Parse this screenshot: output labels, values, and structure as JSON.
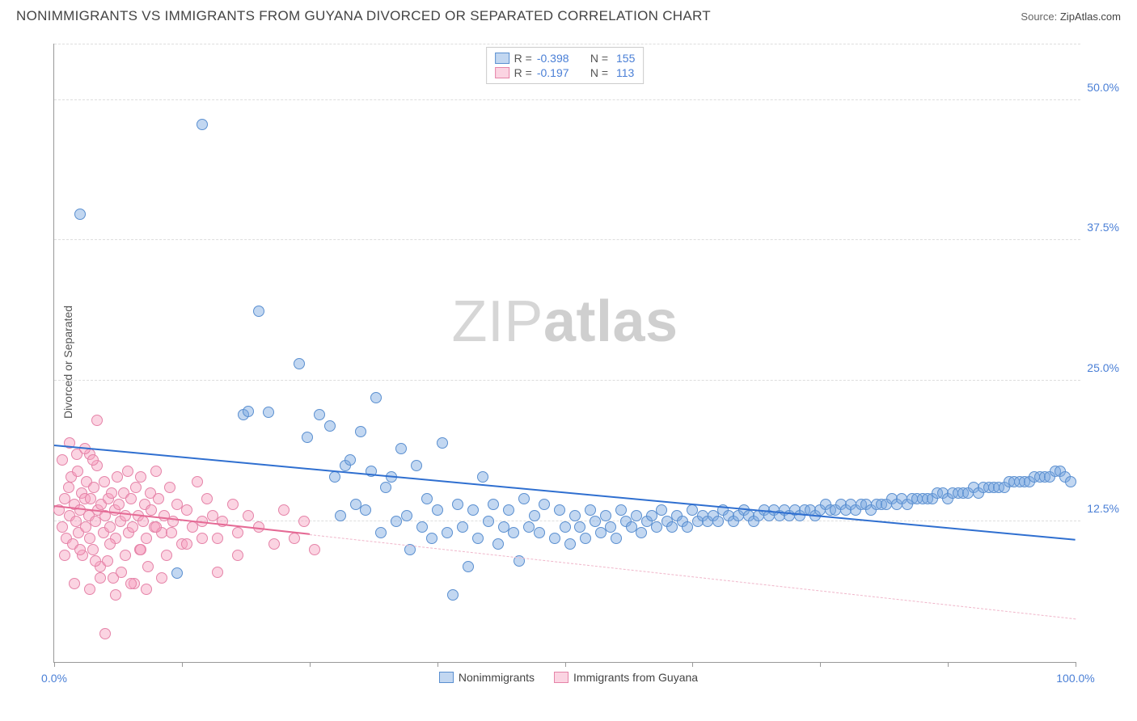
{
  "title": "NONIMMIGRANTS VS IMMIGRANTS FROM GUYANA DIVORCED OR SEPARATED CORRELATION CHART",
  "source": {
    "label": "Source:",
    "name": "ZipAtlas.com"
  },
  "ylabel": "Divorced or Separated",
  "watermark": {
    "part1": "ZIP",
    "part2": "atlas"
  },
  "chart": {
    "type": "scatter",
    "background_color": "#ffffff",
    "grid_color": "#dddddd",
    "axis_color": "#999999",
    "xlim": [
      0,
      100
    ],
    "ylim": [
      0,
      55
    ],
    "y_ticks": [
      12.5,
      25.0,
      37.5,
      50.0
    ],
    "y_tick_labels": [
      "12.5%",
      "25.0%",
      "37.5%",
      "50.0%"
    ],
    "y_tick_color": "#4a7fd6",
    "x_ticks": [
      0,
      12.5,
      25,
      37.5,
      50,
      62.5,
      75,
      87.5,
      100
    ],
    "x_tick_labels": {
      "0": "0.0%",
      "100": "100.0%"
    },
    "x_tick_color": "#4a7fd6",
    "marker_radius": 7,
    "marker_stroke_width": 1,
    "series": [
      {
        "name": "Nonimmigrants",
        "fill_color": "rgba(120,166,224,0.45)",
        "stroke_color": "#5a8fd0",
        "R": "-0.398",
        "N": "155",
        "trend": {
          "color": "#2f6fd0",
          "width": 2.5,
          "style": "solid",
          "x1": 0,
          "y1": 19.2,
          "x2": 100,
          "y2": 10.8
        },
        "points": [
          [
            2.5,
            39.8
          ],
          [
            14.5,
            47.8
          ],
          [
            12.0,
            7.9
          ],
          [
            18.5,
            22.0
          ],
          [
            19.0,
            22.3
          ],
          [
            20.0,
            31.2
          ],
          [
            21.0,
            22.2
          ],
          [
            24.0,
            26.5
          ],
          [
            24.8,
            20.0
          ],
          [
            26.0,
            22.0
          ],
          [
            27.0,
            21.0
          ],
          [
            27.5,
            16.5
          ],
          [
            28.5,
            17.5
          ],
          [
            28.0,
            13.0
          ],
          [
            29.0,
            18.0
          ],
          [
            29.5,
            14.0
          ],
          [
            30.0,
            20.5
          ],
          [
            30.5,
            13.5
          ],
          [
            31.0,
            17.0
          ],
          [
            31.5,
            23.5
          ],
          [
            32.0,
            11.5
          ],
          [
            32.5,
            15.5
          ],
          [
            33.0,
            16.5
          ],
          [
            33.5,
            12.5
          ],
          [
            34.0,
            19.0
          ],
          [
            34.5,
            13.0
          ],
          [
            35.5,
            17.5
          ],
          [
            34.8,
            10.0
          ],
          [
            36.0,
            12.0
          ],
          [
            36.5,
            14.5
          ],
          [
            37.0,
            11.0
          ],
          [
            37.5,
            13.5
          ],
          [
            38.0,
            19.5
          ],
          [
            38.5,
            11.5
          ],
          [
            39.0,
            6.0
          ],
          [
            39.5,
            14.0
          ],
          [
            40.0,
            12.0
          ],
          [
            40.5,
            8.5
          ],
          [
            41.0,
            13.5
          ],
          [
            41.5,
            11.0
          ],
          [
            42.0,
            16.5
          ],
          [
            42.5,
            12.5
          ],
          [
            43.0,
            14.0
          ],
          [
            43.5,
            10.5
          ],
          [
            44.0,
            12.0
          ],
          [
            44.5,
            13.5
          ],
          [
            45.0,
            11.5
          ],
          [
            45.5,
            9.0
          ],
          [
            46.0,
            14.5
          ],
          [
            46.5,
            12.0
          ],
          [
            47.0,
            13.0
          ],
          [
            47.5,
            11.5
          ],
          [
            48.0,
            14.0
          ],
          [
            49.0,
            11.0
          ],
          [
            49.5,
            13.5
          ],
          [
            50.0,
            12.0
          ],
          [
            50.5,
            10.5
          ],
          [
            51.0,
            13.0
          ],
          [
            51.5,
            12.0
          ],
          [
            52.0,
            11.0
          ],
          [
            52.5,
            13.5
          ],
          [
            53.0,
            12.5
          ],
          [
            53.5,
            11.5
          ],
          [
            54.0,
            13.0
          ],
          [
            54.5,
            12.0
          ],
          [
            55.0,
            11.0
          ],
          [
            55.5,
            13.5
          ],
          [
            56.0,
            12.5
          ],
          [
            56.5,
            12.0
          ],
          [
            57.0,
            13.0
          ],
          [
            57.5,
            11.5
          ],
          [
            58.0,
            12.5
          ],
          [
            58.5,
            13.0
          ],
          [
            59.0,
            12.0
          ],
          [
            59.5,
            13.5
          ],
          [
            60.0,
            12.5
          ],
          [
            60.5,
            12.0
          ],
          [
            61.0,
            13.0
          ],
          [
            61.5,
            12.5
          ],
          [
            62.0,
            12.0
          ],
          [
            62.5,
            13.5
          ],
          [
            63.0,
            12.5
          ],
          [
            63.5,
            13.0
          ],
          [
            64.0,
            12.5
          ],
          [
            64.5,
            13.0
          ],
          [
            65.0,
            12.5
          ],
          [
            65.5,
            13.5
          ],
          [
            66.0,
            13.0
          ],
          [
            66.5,
            12.5
          ],
          [
            67.0,
            13.0
          ],
          [
            67.5,
            13.5
          ],
          [
            68.0,
            13.0
          ],
          [
            68.5,
            12.5
          ],
          [
            69.0,
            13.0
          ],
          [
            69.5,
            13.5
          ],
          [
            70.0,
            13.0
          ],
          [
            70.5,
            13.5
          ],
          [
            71.0,
            13.0
          ],
          [
            71.5,
            13.5
          ],
          [
            72.0,
            13.0
          ],
          [
            72.5,
            13.5
          ],
          [
            73.0,
            13.0
          ],
          [
            73.5,
            13.5
          ],
          [
            74.0,
            13.5
          ],
          [
            74.5,
            13.0
          ],
          [
            75.0,
            13.5
          ],
          [
            75.5,
            14.0
          ],
          [
            76.0,
            13.5
          ],
          [
            76.5,
            13.5
          ],
          [
            77.0,
            14.0
          ],
          [
            77.5,
            13.5
          ],
          [
            78.0,
            14.0
          ],
          [
            78.5,
            13.5
          ],
          [
            79.0,
            14.0
          ],
          [
            79.5,
            14.0
          ],
          [
            80.0,
            13.5
          ],
          [
            80.5,
            14.0
          ],
          [
            81.0,
            14.0
          ],
          [
            81.5,
            14.0
          ],
          [
            82.0,
            14.5
          ],
          [
            82.5,
            14.0
          ],
          [
            83.0,
            14.5
          ],
          [
            83.5,
            14.0
          ],
          [
            84.0,
            14.5
          ],
          [
            84.5,
            14.5
          ],
          [
            85.0,
            14.5
          ],
          [
            85.5,
            14.5
          ],
          [
            86.0,
            14.5
          ],
          [
            86.5,
            15.0
          ],
          [
            87.0,
            15.0
          ],
          [
            87.5,
            14.5
          ],
          [
            88.0,
            15.0
          ],
          [
            88.5,
            15.0
          ],
          [
            89.0,
            15.0
          ],
          [
            89.5,
            15.0
          ],
          [
            90.0,
            15.5
          ],
          [
            90.5,
            15.0
          ],
          [
            91.0,
            15.5
          ],
          [
            91.5,
            15.5
          ],
          [
            92.0,
            15.5
          ],
          [
            92.5,
            15.5
          ],
          [
            93.0,
            15.5
          ],
          [
            93.5,
            16.0
          ],
          [
            94.0,
            16.0
          ],
          [
            94.5,
            16.0
          ],
          [
            95.0,
            16.0
          ],
          [
            95.5,
            16.0
          ],
          [
            96.0,
            16.5
          ],
          [
            96.5,
            16.5
          ],
          [
            97.0,
            16.5
          ],
          [
            97.5,
            16.5
          ],
          [
            98.0,
            17.0
          ],
          [
            98.5,
            17.0
          ],
          [
            99.0,
            16.5
          ],
          [
            99.5,
            16.0
          ]
        ]
      },
      {
        "name": "Immigrants from Guyana",
        "fill_color": "rgba(246,160,190,0.45)",
        "stroke_color": "#e583a8",
        "R": "-0.197",
        "N": "113",
        "trend": {
          "color": "#e56a95",
          "width": 2,
          "style": "solid",
          "x1": 0,
          "y1": 13.8,
          "x2": 25,
          "y2": 11.3,
          "extend_to_x": 100,
          "extend_to_y": 3.8,
          "dash_color": "#f0b6ca"
        },
        "points": [
          [
            0.5,
            13.5
          ],
          [
            0.8,
            12.0
          ],
          [
            1.0,
            14.5
          ],
          [
            1.2,
            11.0
          ],
          [
            1.4,
            15.5
          ],
          [
            1.5,
            13.0
          ],
          [
            1.7,
            16.5
          ],
          [
            1.8,
            10.5
          ],
          [
            2.0,
            14.0
          ],
          [
            2.1,
            12.5
          ],
          [
            2.3,
            17.0
          ],
          [
            2.4,
            11.5
          ],
          [
            2.5,
            13.5
          ],
          [
            2.7,
            15.0
          ],
          [
            2.8,
            9.5
          ],
          [
            3.0,
            14.5
          ],
          [
            3.1,
            12.0
          ],
          [
            3.2,
            16.0
          ],
          [
            3.4,
            13.0
          ],
          [
            3.5,
            11.0
          ],
          [
            3.6,
            14.5
          ],
          [
            3.8,
            10.0
          ],
          [
            3.9,
            15.5
          ],
          [
            4.0,
            12.5
          ],
          [
            4.2,
            17.5
          ],
          [
            4.3,
            13.5
          ],
          [
            4.5,
            8.5
          ],
          [
            4.6,
            14.0
          ],
          [
            4.8,
            11.5
          ],
          [
            4.9,
            16.0
          ],
          [
            5.0,
            13.0
          ],
          [
            5.2,
            9.0
          ],
          [
            5.3,
            14.5
          ],
          [
            5.5,
            12.0
          ],
          [
            5.6,
            15.0
          ],
          [
            5.8,
            7.5
          ],
          [
            5.9,
            13.5
          ],
          [
            6.0,
            11.0
          ],
          [
            6.2,
            16.5
          ],
          [
            6.3,
            14.0
          ],
          [
            6.5,
            12.5
          ],
          [
            6.6,
            8.0
          ],
          [
            6.8,
            15.0
          ],
          [
            7.0,
            13.0
          ],
          [
            7.2,
            17.0
          ],
          [
            7.3,
            11.5
          ],
          [
            7.5,
            14.5
          ],
          [
            7.7,
            12.0
          ],
          [
            7.8,
            7.0
          ],
          [
            8.0,
            15.5
          ],
          [
            8.2,
            13.0
          ],
          [
            8.4,
            10.0
          ],
          [
            8.5,
            16.5
          ],
          [
            8.7,
            12.5
          ],
          [
            8.9,
            14.0
          ],
          [
            9.0,
            11.0
          ],
          [
            9.2,
            8.5
          ],
          [
            9.4,
            15.0
          ],
          [
            9.5,
            13.5
          ],
          [
            9.8,
            12.0
          ],
          [
            10.0,
            17.0
          ],
          [
            10.2,
            14.5
          ],
          [
            10.5,
            11.5
          ],
          [
            10.8,
            13.0
          ],
          [
            11.0,
            9.5
          ],
          [
            11.3,
            15.5
          ],
          [
            11.6,
            12.5
          ],
          [
            12.0,
            14.0
          ],
          [
            4.2,
            21.5
          ],
          [
            3.5,
            18.5
          ],
          [
            12.5,
            10.5
          ],
          [
            13.0,
            13.5
          ],
          [
            13.5,
            12.0
          ],
          [
            14.0,
            16.0
          ],
          [
            14.5,
            11.0
          ],
          [
            15.0,
            14.5
          ],
          [
            15.5,
            13.0
          ],
          [
            16.0,
            8.0
          ],
          [
            16.5,
            12.5
          ],
          [
            17.5,
            14.0
          ],
          [
            18.0,
            11.5
          ],
          [
            19.0,
            13.0
          ],
          [
            20.0,
            12.0
          ],
          [
            21.5,
            10.5
          ],
          [
            22.5,
            13.5
          ],
          [
            23.5,
            11.0
          ],
          [
            24.5,
            12.5
          ],
          [
            25.5,
            10.0
          ],
          [
            5.0,
            2.5
          ],
          [
            0.8,
            18.0
          ],
          [
            1.5,
            19.5
          ],
          [
            2.2,
            18.5
          ],
          [
            3.0,
            19.0
          ],
          [
            3.8,
            18.0
          ],
          [
            2.0,
            7.0
          ],
          [
            3.5,
            6.5
          ],
          [
            4.5,
            7.5
          ],
          [
            6.0,
            6.0
          ],
          [
            7.5,
            7.0
          ],
          [
            9.0,
            6.5
          ],
          [
            10.5,
            7.5
          ],
          [
            1.0,
            9.5
          ],
          [
            2.5,
            10.0
          ],
          [
            4.0,
            9.0
          ],
          [
            5.5,
            10.5
          ],
          [
            7.0,
            9.5
          ],
          [
            8.5,
            10.0
          ],
          [
            10.0,
            12.0
          ],
          [
            11.5,
            11.5
          ],
          [
            13.0,
            10.5
          ],
          [
            14.5,
            12.5
          ],
          [
            16.0,
            11.0
          ],
          [
            18.0,
            9.5
          ]
        ]
      }
    ]
  },
  "legend_top": {
    "r_label": "R =",
    "n_label": "N =",
    "stat_color": "#4a7fd6",
    "text_color": "#555555"
  },
  "legend_bottom": {
    "items": [
      "Nonimmigrants",
      "Immigrants from Guyana"
    ]
  }
}
